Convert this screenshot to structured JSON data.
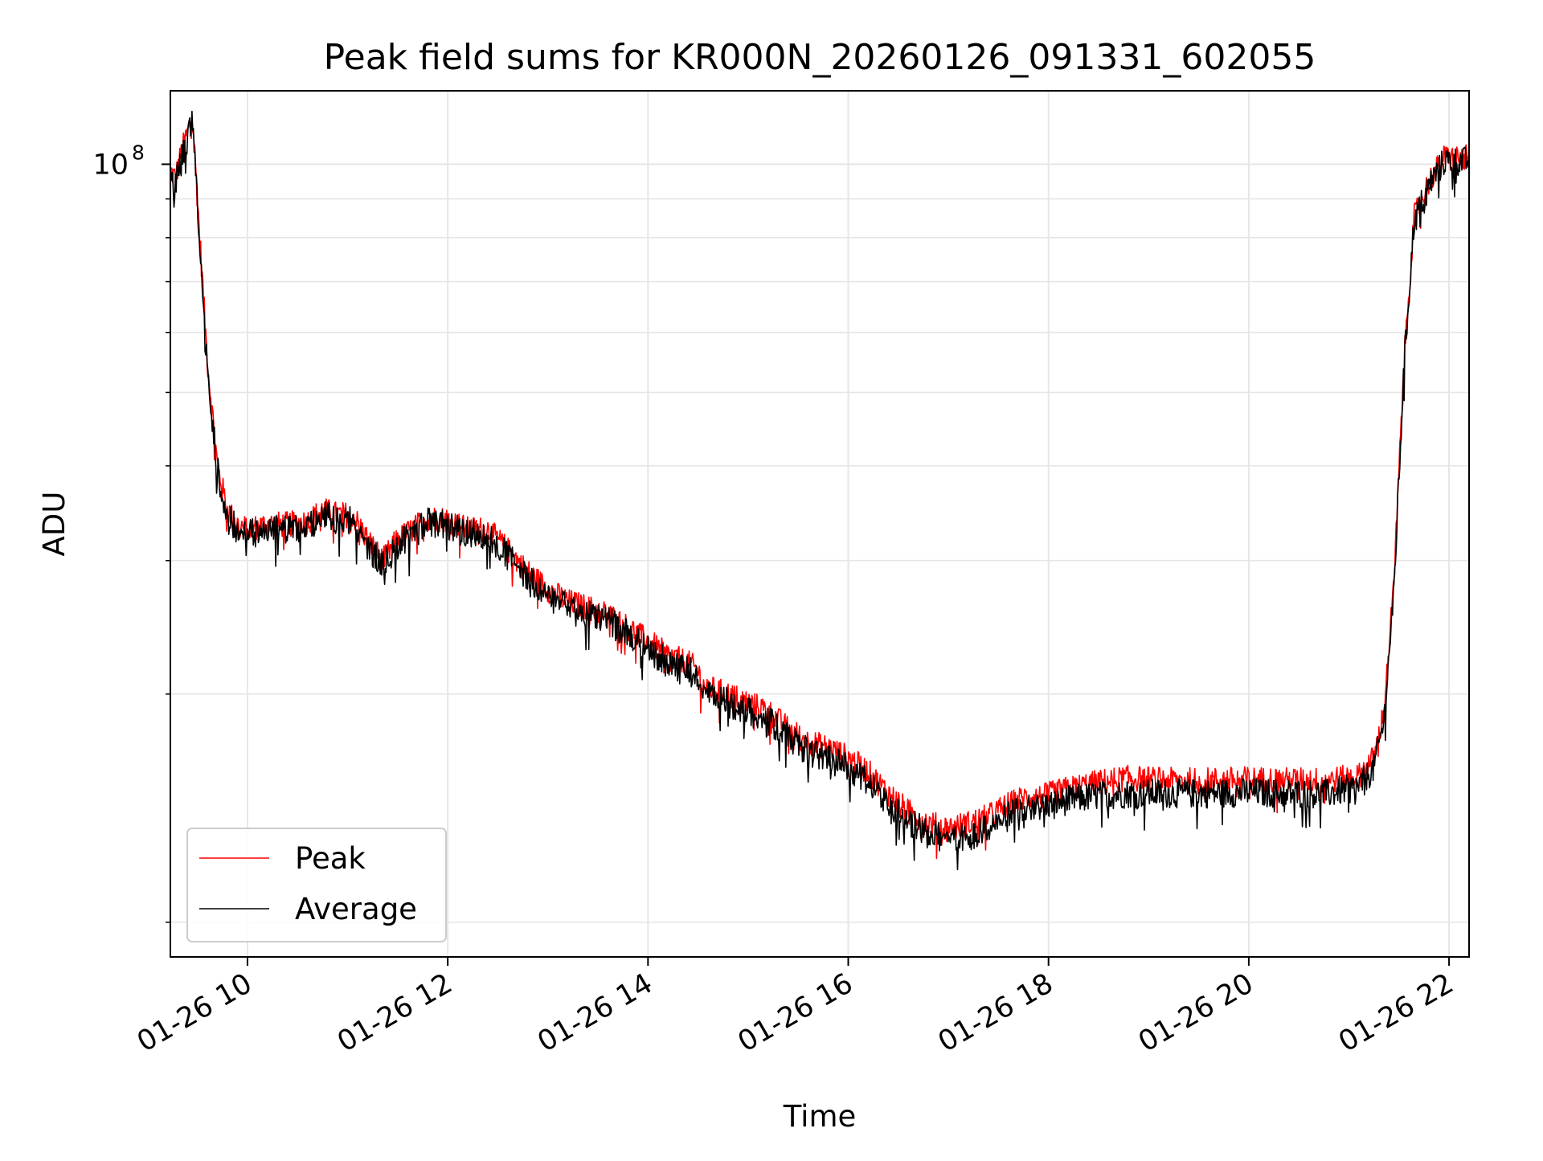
{
  "chart_data": {
    "type": "line",
    "title": "Peak field sums for KR000N_20260126_091331_602055",
    "xlabel": "Time",
    "ylabel": "ADU",
    "y_scale": "log",
    "xlim_hours": [
      9.23,
      22.2
    ],
    "ylim": [
      9000000,
      125000000
    ],
    "grid": true,
    "legend_position": "lower-left",
    "x_ticks": [
      {
        "value": 10,
        "label": "01-26 10"
      },
      {
        "value": 12,
        "label": "01-26 12"
      },
      {
        "value": 14,
        "label": "01-26 14"
      },
      {
        "value": 16,
        "label": "01-26 16"
      },
      {
        "value": 18,
        "label": "01-26 18"
      },
      {
        "value": 20,
        "label": "01-26 20"
      },
      {
        "value": 22,
        "label": "01-26 22"
      }
    ],
    "y_major_tick": {
      "value": 100000000,
      "label_base": "10",
      "label_exp": "8"
    },
    "y_minor_ticks": [
      10000000,
      20000000,
      30000000,
      40000000,
      50000000,
      60000000,
      70000000,
      80000000,
      90000000
    ],
    "series": [
      {
        "name": "Peak",
        "color": "#ff0000",
        "noise_pct": 4,
        "x": [
          9.23,
          9.28,
          9.35,
          9.42,
          9.45,
          9.5,
          9.6,
          9.7,
          9.8,
          9.9,
          10.0,
          10.2,
          10.4,
          10.6,
          10.75,
          10.9,
          11.05,
          11.2,
          11.35,
          11.5,
          11.65,
          11.8,
          12.0,
          12.2,
          12.4,
          12.6,
          12.8,
          13.0,
          13.2,
          13.4,
          13.6,
          13.8,
          14.0,
          14.2,
          14.4,
          14.5,
          14.55,
          14.8,
          15.0,
          15.2,
          15.4,
          15.6,
          15.8,
          16.0,
          16.2,
          16.4,
          16.6,
          16.8,
          17.0,
          17.2,
          17.4,
          17.6,
          17.75,
          17.9,
          18.2,
          18.5,
          18.8,
          19.2,
          19.6,
          20.0,
          20.4,
          20.8,
          21.1,
          21.25,
          21.35,
          21.45,
          21.55,
          21.65,
          21.8,
          21.95,
          22.2
        ],
        "y": [
          98000000,
          96000000,
          105000000,
          112000000,
          118000000,
          90000000,
          55000000,
          40000000,
          35000000,
          33500000,
          33000000,
          33500000,
          33500000,
          33800000,
          35000000,
          34500000,
          34500000,
          32000000,
          30000000,
          32000000,
          33000000,
          34200000,
          34000000,
          33000000,
          33000000,
          31000000,
          29000000,
          27500000,
          26500000,
          26000000,
          25500000,
          24500000,
          23500000,
          22500000,
          22000000,
          21500000,
          20500000,
          20000000,
          19500000,
          19000000,
          18000000,
          17300000,
          17000000,
          16500000,
          15800000,
          14800000,
          14000000,
          13500000,
          13300000,
          13500000,
          13800000,
          14300000,
          14600000,
          14600000,
          15000000,
          15300000,
          15500000,
          15400000,
          15400000,
          15450000,
          15400000,
          15400000,
          15600000,
          16500000,
          19000000,
          28000000,
          55000000,
          85000000,
          95000000,
          102000000,
          102000000
        ]
      },
      {
        "name": "Average",
        "color": "#000000",
        "noise_pct": 4.5,
        "x": [
          9.23,
          9.28,
          9.35,
          9.42,
          9.45,
          9.5,
          9.6,
          9.7,
          9.8,
          9.9,
          10.0,
          10.2,
          10.4,
          10.6,
          10.75,
          10.9,
          11.05,
          11.2,
          11.35,
          11.5,
          11.65,
          11.8,
          12.0,
          12.2,
          12.4,
          12.6,
          12.8,
          13.0,
          13.2,
          13.4,
          13.6,
          13.8,
          14.0,
          14.2,
          14.4,
          14.5,
          14.55,
          14.8,
          15.0,
          15.2,
          15.4,
          15.6,
          15.8,
          16.0,
          16.2,
          16.4,
          16.6,
          16.8,
          17.0,
          17.2,
          17.4,
          17.6,
          17.75,
          17.9,
          18.2,
          18.5,
          18.8,
          19.2,
          19.6,
          20.0,
          20.4,
          20.8,
          21.1,
          21.25,
          21.35,
          21.45,
          21.55,
          21.65,
          21.8,
          21.95,
          22.2
        ],
        "y": [
          96000000,
          94000000,
          103000000,
          110000000,
          116000000,
          88000000,
          54000000,
          39500000,
          34500000,
          33000000,
          32500000,
          33000000,
          33000000,
          33300000,
          34500000,
          34000000,
          34000000,
          31500000,
          29500000,
          31500000,
          32500000,
          33700000,
          33500000,
          32500000,
          32500000,
          30500000,
          28500000,
          27000000,
          26000000,
          25500000,
          25000000,
          24000000,
          23000000,
          22000000,
          21500000,
          21000000,
          20000000,
          19500000,
          19000000,
          18500000,
          17500000,
          16800000,
          16500000,
          16000000,
          15300000,
          14300000,
          13600000,
          13100000,
          12900000,
          13000000,
          13300000,
          13800000,
          14100000,
          14200000,
          14500000,
          14700000,
          14800000,
          14800000,
          14800000,
          14850000,
          14800000,
          14800000,
          15100000,
          16000000,
          18500000,
          27500000,
          54000000,
          84000000,
          94000000,
          101000000,
          101000000
        ]
      }
    ]
  }
}
